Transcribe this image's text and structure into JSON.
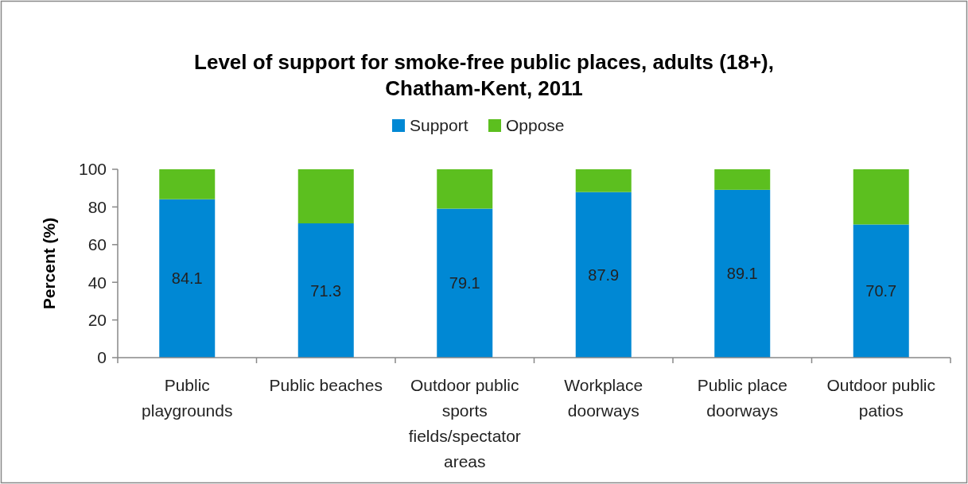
{
  "chart_data": {
    "type": "bar",
    "title": "Level of support for smoke-free public places, adults (18+),\nChatham-Kent, 2011",
    "ylabel": "Percent (%)",
    "categories": [
      "Public playgrounds",
      "Public beaches",
      "Outdoor public sports fields/spectator areas",
      "Workplace doorways",
      "Public place doorways",
      "Outdoor public patios"
    ],
    "series": [
      {
        "name": "Support",
        "color": "#0088d4",
        "values": [
          84.1,
          71.3,
          79.1,
          87.9,
          89.1,
          70.7
        ],
        "value_labels": [
          "84.1",
          "71.3",
          "79.1",
          "87.9",
          "89.1",
          "70.7"
        ]
      },
      {
        "name": "Oppose",
        "color": "#5cbf1f",
        "values": [
          15.9,
          28.7,
          20.9,
          12.1,
          10.9,
          29.3
        ]
      }
    ],
    "stacked": true,
    "ylim": [
      0,
      100
    ],
    "yticks": [
      0,
      20,
      40,
      60,
      80,
      100
    ],
    "legend": "top",
    "grid": false
  }
}
